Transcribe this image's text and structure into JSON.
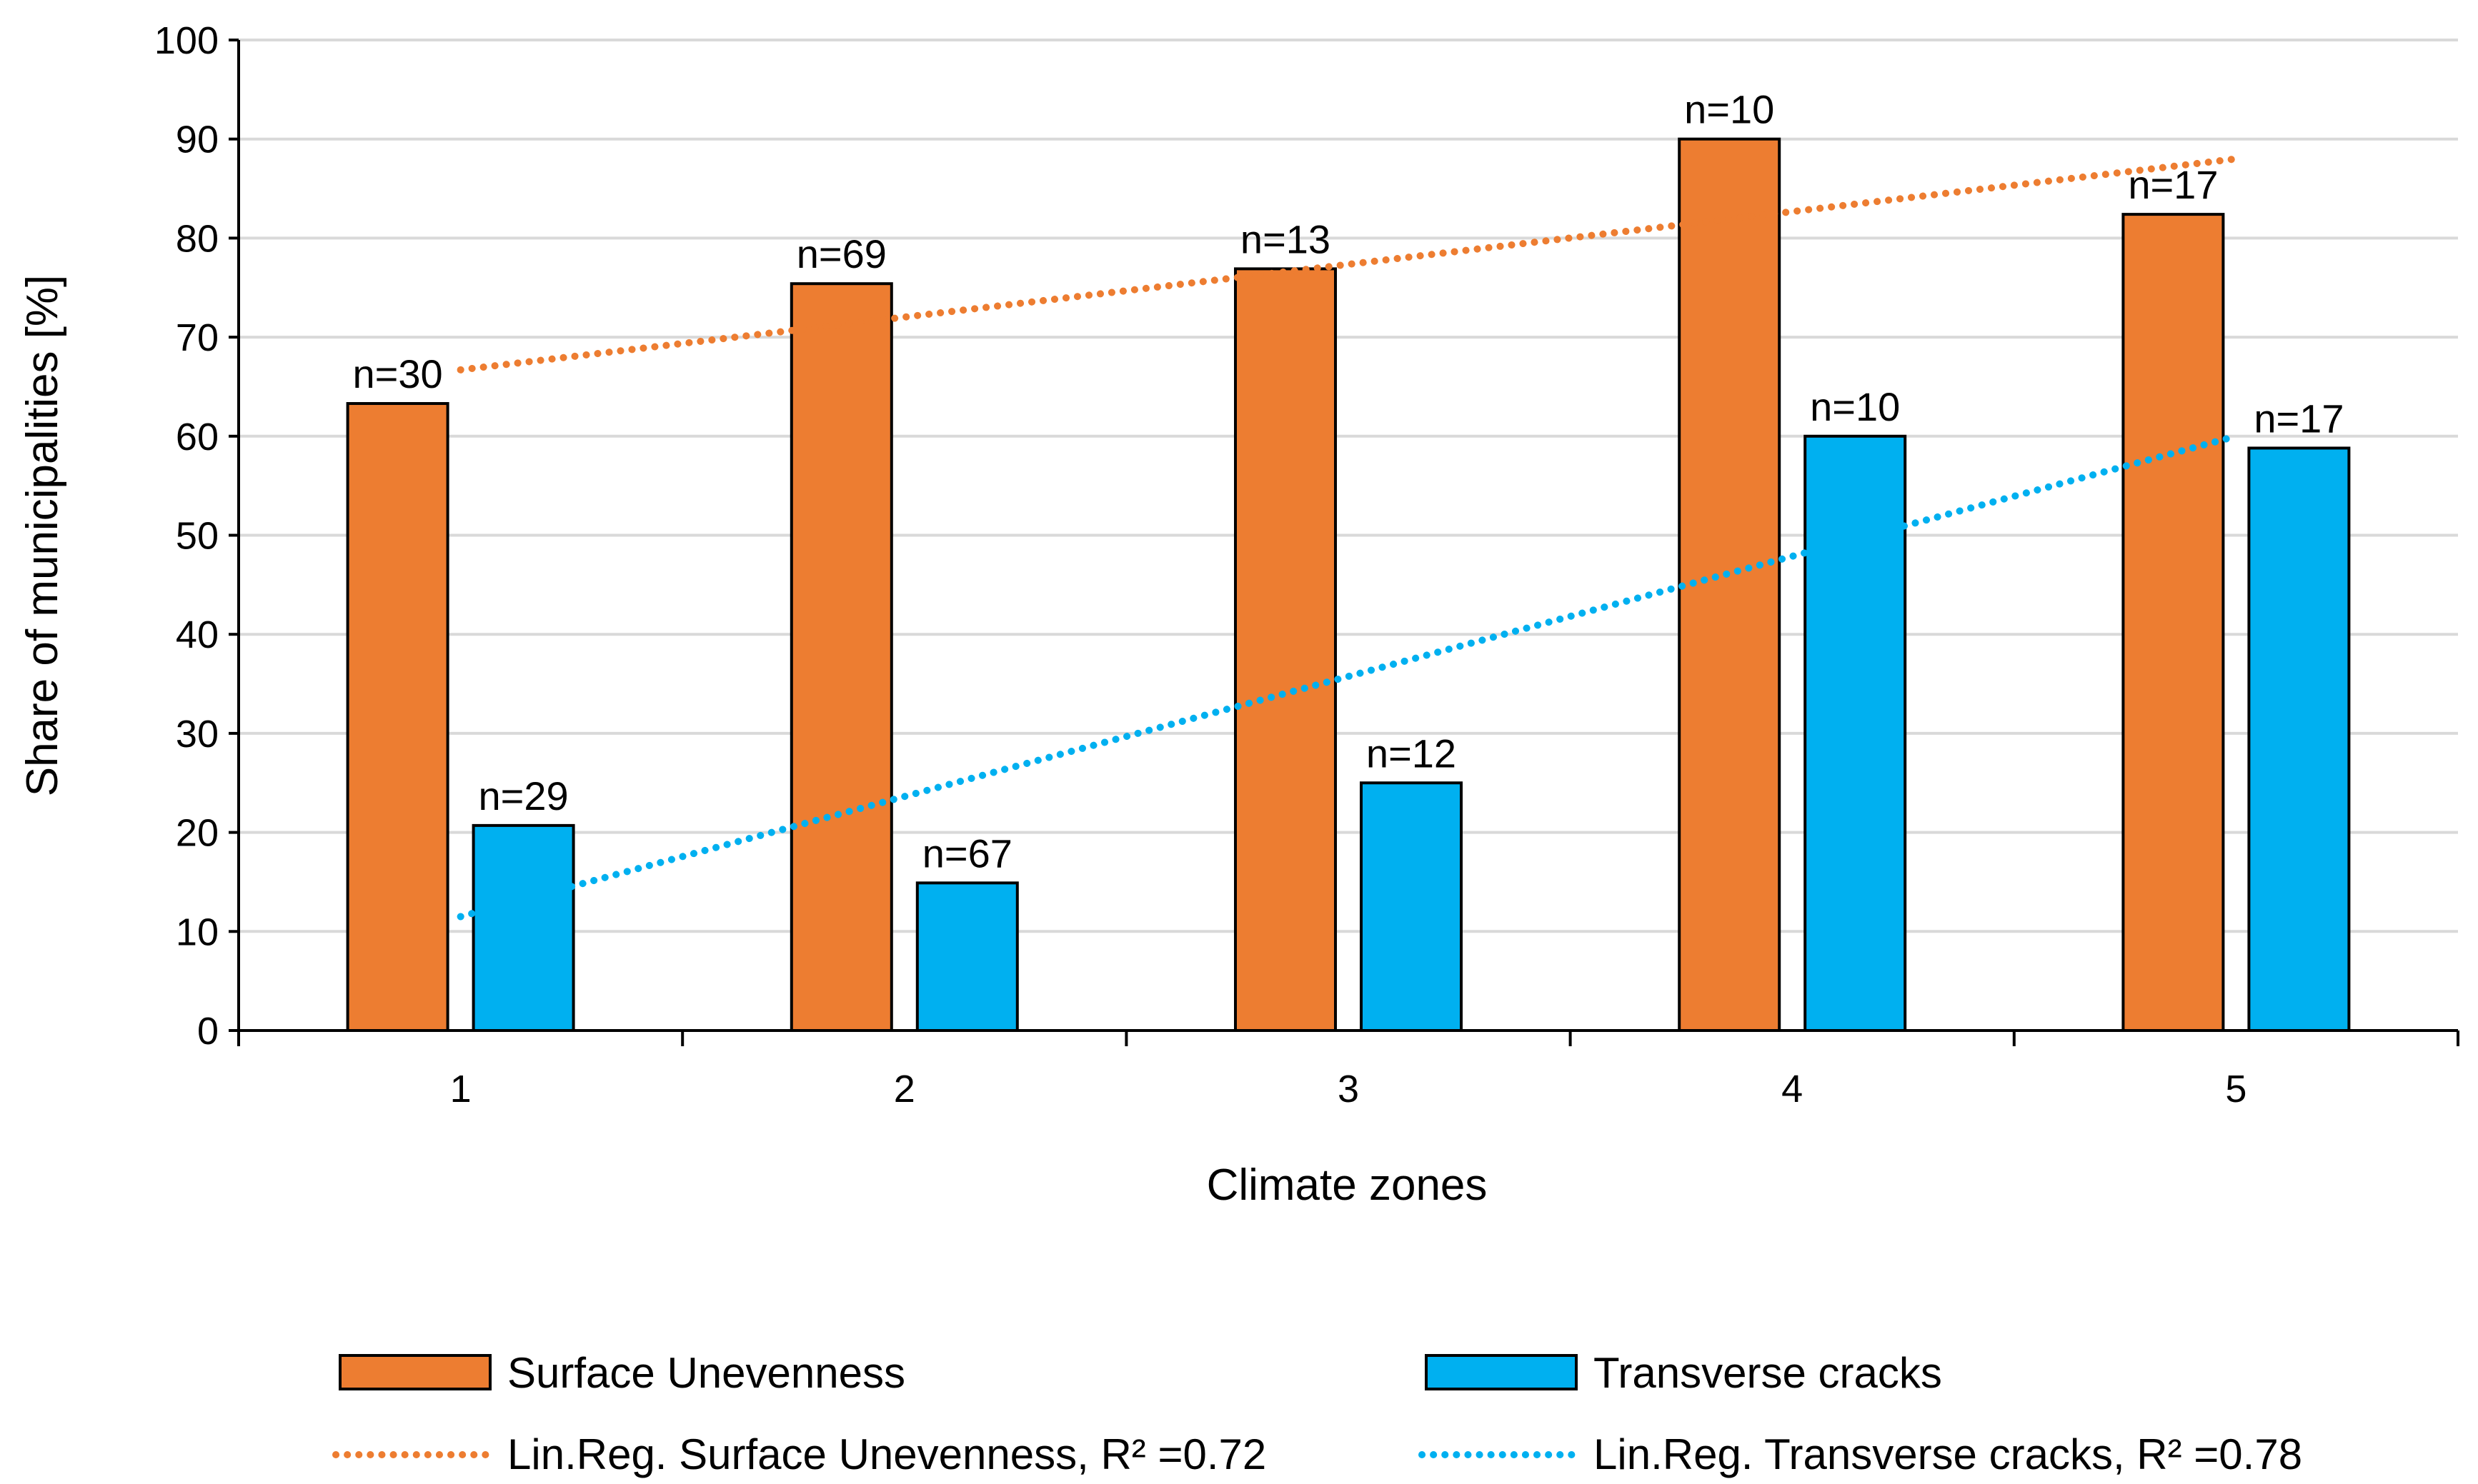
{
  "chart_data": {
    "type": "bar",
    "xlabel": "Climate zones",
    "ylabel": "Share of municipalities [%]",
    "ylim": [
      0,
      100
    ],
    "yticks": [
      0,
      10,
      20,
      30,
      40,
      50,
      60,
      70,
      80,
      90,
      100
    ],
    "grid": true,
    "legend_position": "bottom",
    "categories": [
      "1",
      "2",
      "3",
      "4",
      "5"
    ],
    "series": [
      {
        "name": "Surface Unevenness",
        "color": "#ED7D31",
        "values": [
          63.3,
          75.4,
          76.9,
          90.0,
          82.4
        ],
        "labels": [
          "n=30",
          "n=69",
          "n=13",
          "n=10",
          "n=17"
        ]
      },
      {
        "name": "Transverse cracks",
        "color": "#00B0F0",
        "values": [
          20.7,
          14.9,
          25.0,
          60.0,
          58.8
        ],
        "labels": [
          "n=29",
          "n=67",
          "n=12",
          "n=10",
          "n=17"
        ]
      }
    ],
    "trendlines": [
      {
        "name": "Lin.Reg. Surface Unevenness, R² =0.72",
        "color": "#ED7D31",
        "series": "Surface Unevenness",
        "start": 66.7,
        "end": 88.0
      },
      {
        "name": "Lin.Reg. Transverse cracks, R² =0.78",
        "color": "#00B0F0",
        "series": "Transverse cracks",
        "start": 11.5,
        "end": 60.0
      }
    ]
  }
}
